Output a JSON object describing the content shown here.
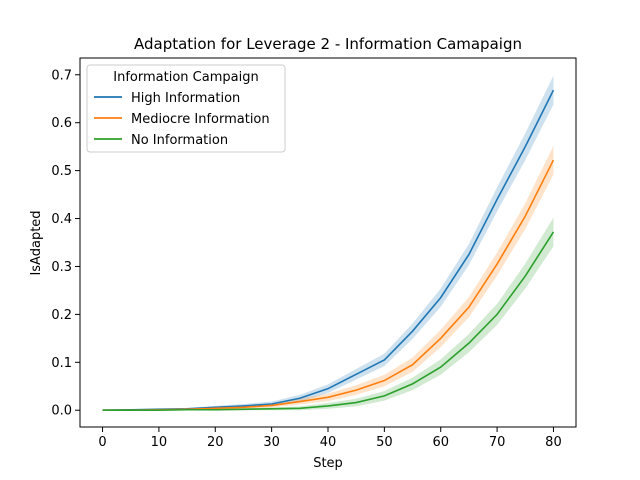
{
  "chart_data": {
    "type": "line",
    "title": "Adaptation for Leverage 2 - Information Camapaign",
    "xlabel": "Step",
    "ylabel": "IsAdapted",
    "xlim": [
      -4,
      84
    ],
    "ylim": [
      -0.035,
      0.735
    ],
    "x_ticks": [
      0,
      10,
      20,
      30,
      40,
      50,
      60,
      70,
      80
    ],
    "y_ticks": [
      0.0,
      0.1,
      0.2,
      0.3,
      0.4,
      0.5,
      0.6,
      0.7
    ],
    "x_tick_labels": [
      "0",
      "10",
      "20",
      "30",
      "40",
      "50",
      "60",
      "70",
      "80"
    ],
    "y_tick_labels": [
      "0.0",
      "0.1",
      "0.2",
      "0.3",
      "0.4",
      "0.5",
      "0.6",
      "0.7"
    ],
    "legend": {
      "title": "Information Campaign",
      "position": "top-left"
    },
    "grid": false,
    "series": [
      {
        "name": "High Information",
        "color": "#1f77b4",
        "x": [
          0,
          5,
          10,
          15,
          20,
          25,
          30,
          35,
          40,
          45,
          50,
          55,
          60,
          65,
          70,
          75,
          80
        ],
        "y": [
          0.0,
          0.001,
          0.002,
          0.003,
          0.006,
          0.009,
          0.013,
          0.025,
          0.045,
          0.075,
          0.105,
          0.165,
          0.235,
          0.325,
          0.44,
          0.55,
          0.668
        ],
        "ci": [
          0.0,
          0.001,
          0.002,
          0.002,
          0.003,
          0.004,
          0.005,
          0.007,
          0.009,
          0.011,
          0.013,
          0.016,
          0.019,
          0.022,
          0.025,
          0.028,
          0.03
        ]
      },
      {
        "name": "Mediocre Information",
        "color": "#ff7f0e",
        "x": [
          0,
          5,
          10,
          15,
          20,
          25,
          30,
          35,
          40,
          45,
          50,
          55,
          60,
          65,
          70,
          75,
          80
        ],
        "y": [
          0.0,
          0.0,
          0.001,
          0.002,
          0.004,
          0.006,
          0.01,
          0.018,
          0.027,
          0.042,
          0.062,
          0.095,
          0.15,
          0.215,
          0.305,
          0.405,
          0.522
        ],
        "ci": [
          0.0,
          0.001,
          0.001,
          0.002,
          0.003,
          0.003,
          0.004,
          0.006,
          0.008,
          0.01,
          0.012,
          0.015,
          0.018,
          0.021,
          0.024,
          0.027,
          0.03
        ]
      },
      {
        "name": "No Information",
        "color": "#2ca02c",
        "x": [
          0,
          5,
          10,
          15,
          20,
          25,
          30,
          35,
          40,
          45,
          50,
          55,
          60,
          65,
          70,
          75,
          80
        ],
        "y": [
          0.0,
          0.0,
          0.0,
          0.001,
          0.001,
          0.002,
          0.003,
          0.004,
          0.009,
          0.016,
          0.03,
          0.055,
          0.09,
          0.14,
          0.2,
          0.28,
          0.372
        ],
        "ci": [
          0.0,
          0.0,
          0.001,
          0.001,
          0.002,
          0.002,
          0.003,
          0.004,
          0.006,
          0.008,
          0.01,
          0.013,
          0.016,
          0.019,
          0.022,
          0.026,
          0.03
        ]
      }
    ]
  }
}
